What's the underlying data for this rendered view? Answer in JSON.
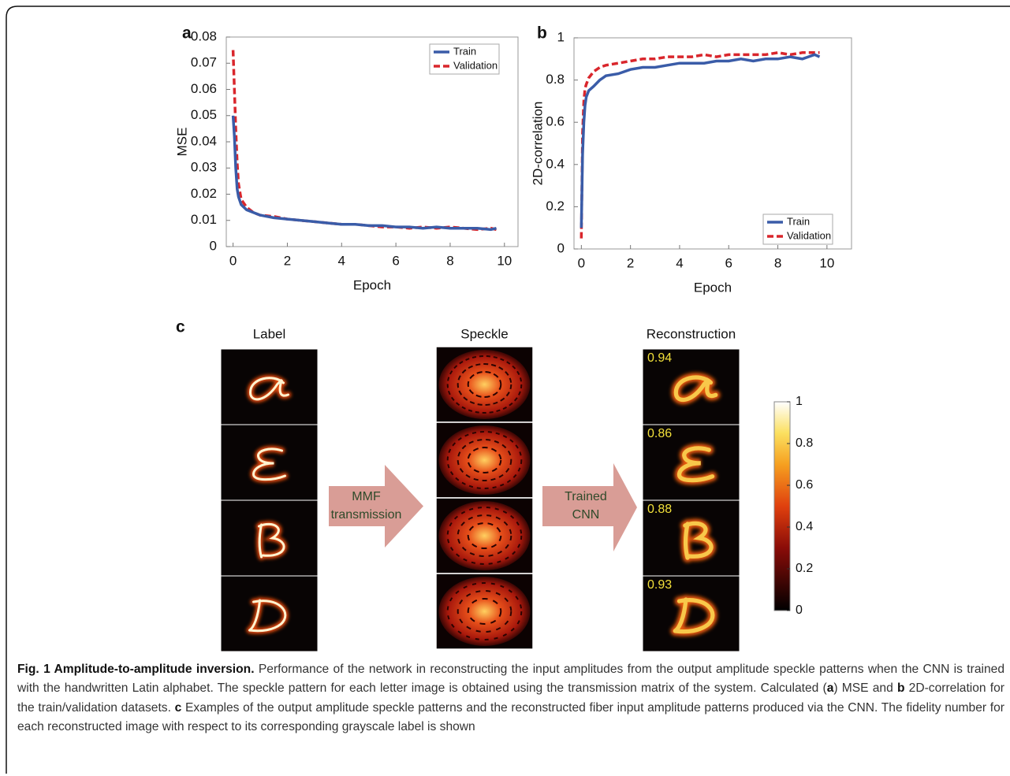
{
  "chart_data": [
    {
      "type": "line",
      "panel": "a",
      "xlabel": "Epoch",
      "ylabel": "MSE",
      "x": [
        0,
        0.05,
        0.1,
        0.15,
        0.2,
        0.3,
        0.5,
        0.75,
        1,
        1.5,
        2,
        2.5,
        3,
        3.5,
        4,
        4.5,
        5,
        5.5,
        6,
        6.5,
        7,
        7.5,
        8,
        8.5,
        9,
        9.5,
        9.7
      ],
      "series": [
        {
          "name": "Train",
          "color": "#3a5ca8",
          "dashed": false,
          "values": [
            0.05,
            0.042,
            0.03,
            0.022,
            0.019,
            0.016,
            0.014,
            0.013,
            0.012,
            0.011,
            0.0105,
            0.01,
            0.0095,
            0.009,
            0.0085,
            0.0085,
            0.008,
            0.008,
            0.0075,
            0.0075,
            0.007,
            0.0075,
            0.007,
            0.007,
            0.007,
            0.0065,
            0.007
          ]
        },
        {
          "name": "Validation",
          "color": "#d9262c",
          "dashed": true,
          "values": [
            0.075,
            0.06,
            0.045,
            0.032,
            0.024,
            0.018,
            0.015,
            0.013,
            0.012,
            0.0115,
            0.0105,
            0.01,
            0.0095,
            0.009,
            0.0085,
            0.0085,
            0.008,
            0.0075,
            0.0075,
            0.007,
            0.0075,
            0.007,
            0.0075,
            0.007,
            0.0065,
            0.007,
            0.0065
          ]
        }
      ],
      "xlim": [
        -0.25,
        10.5
      ],
      "ylim": [
        0,
        0.08
      ],
      "xticks": [
        0,
        2,
        4,
        6,
        8,
        10
      ],
      "yticks": [
        0,
        0.01,
        0.02,
        0.03,
        0.04,
        0.05,
        0.06,
        0.07,
        0.08
      ],
      "legend": "upper right"
    },
    {
      "type": "line",
      "panel": "b",
      "xlabel": "Epoch",
      "ylabel": "2D-correlation",
      "x": [
        0,
        0.05,
        0.1,
        0.15,
        0.2,
        0.3,
        0.5,
        0.75,
        1,
        1.5,
        2,
        2.5,
        3,
        3.5,
        4,
        4.5,
        5,
        5.5,
        6,
        6.5,
        7,
        7.5,
        8,
        8.5,
        9,
        9.5,
        9.7
      ],
      "series": [
        {
          "name": "Train",
          "color": "#3a5ca8",
          "dashed": false,
          "values": [
            0.1,
            0.45,
            0.6,
            0.68,
            0.72,
            0.75,
            0.77,
            0.8,
            0.82,
            0.83,
            0.85,
            0.86,
            0.86,
            0.87,
            0.88,
            0.88,
            0.88,
            0.89,
            0.89,
            0.9,
            0.89,
            0.9,
            0.9,
            0.91,
            0.9,
            0.92,
            0.91
          ]
        },
        {
          "name": "Validation",
          "color": "#d9262c",
          "dashed": true,
          "values": [
            0.05,
            0.55,
            0.7,
            0.76,
            0.78,
            0.81,
            0.84,
            0.86,
            0.87,
            0.88,
            0.89,
            0.9,
            0.9,
            0.91,
            0.91,
            0.91,
            0.92,
            0.91,
            0.92,
            0.92,
            0.92,
            0.92,
            0.93,
            0.92,
            0.93,
            0.93,
            0.93
          ]
        }
      ],
      "xlim": [
        -0.3,
        11
      ],
      "ylim": [
        0,
        1
      ],
      "xticks": [
        0,
        2,
        4,
        6,
        8,
        10
      ],
      "yticks": [
        0,
        0.2,
        0.4,
        0.6,
        0.8,
        1
      ],
      "legend": "lower right"
    }
  ],
  "panel_c": {
    "panel": "c",
    "column_titles": [
      "Label",
      "Speckle",
      "Reconstruction"
    ],
    "arrows": [
      [
        "MMF",
        "transmission"
      ],
      [
        "Trained",
        "CNN"
      ]
    ],
    "fidelity": [
      0.94,
      0.86,
      0.88,
      0.93
    ],
    "colorbar": {
      "lim": [
        0,
        1
      ],
      "ticks": [
        0,
        0.2,
        0.4,
        0.6,
        0.8,
        1
      ]
    }
  },
  "caption": {
    "segments": [
      {
        "text": "Fig. 1 Amplitude-to-amplitude inversion.",
        "bold": true
      },
      {
        "text": " Performance of the network in reconstructing the input amplitudes from the output amplitude speckle patterns when the CNN is trained with the handwritten Latin alphabet. The speckle pattern for each letter image is obtained using the transmission matrix of the system. Calculated (",
        "bold": false
      },
      {
        "text": "a",
        "bold": true
      },
      {
        "text": ") MSE and ",
        "bold": false
      },
      {
        "text": "b",
        "bold": true
      },
      {
        "text": " 2D-correlation for the train/validation datasets. ",
        "bold": false
      },
      {
        "text": "c",
        "bold": true
      },
      {
        "text": " Examples of the output amplitude speckle patterns and the reconstructed fiber input amplitude patterns produced via the CNN. The fidelity number for each reconstructed image with respect to its corresponding grayscale label is shown",
        "bold": false
      }
    ]
  }
}
